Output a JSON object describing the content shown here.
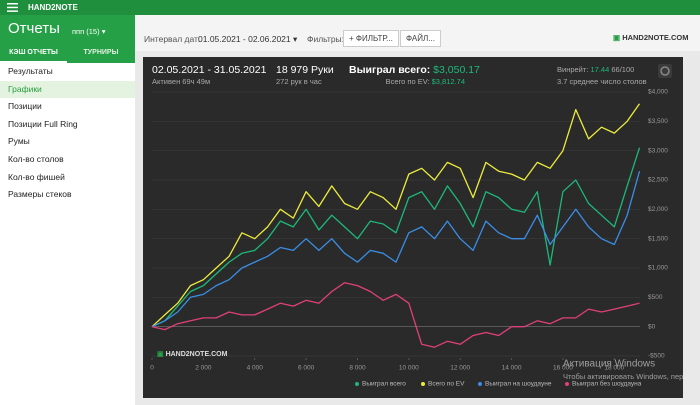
{
  "header": {
    "app": "HAND2NOTE",
    "title": "Отчеты",
    "profile": "ппп (15)"
  },
  "sidebar": {
    "tabs": [
      "КЭШ ОТЧЕТЫ",
      "ТУРНИРЫ"
    ],
    "items": [
      "Результаты",
      "Графики",
      "Позиции",
      "Позиции Full Ring",
      "Румы",
      "Кол-во столов",
      "Кол-во фишей",
      "Размеры стеков"
    ]
  },
  "toolbar": {
    "date_label": "Интервал дат:",
    "date_range": "01.05.2021 - 02.06.2021",
    "filters_label": "Фильтры:",
    "filter_button": "ФИЛЬТР...",
    "file_button": "ФАЙЛ...",
    "logo": "HAND2NOTE.COM"
  },
  "stats": {
    "period": "02.05.2021 - 31.05.2021",
    "active": "Активен 69ч 49м",
    "hands": "18 979 Руки",
    "hands_per_hour": "272 рук в час",
    "won_label": "Выиграл всего:",
    "won": "$3,050.17",
    "ev_label": "Всего по EV:",
    "ev": "$3,812.74",
    "winrate_label": "Винрейт:",
    "winrate": "17.44",
    "winrate_unit": "66/100",
    "avg_tables": "3.7 среднее число столов"
  },
  "watermark": {
    "title": "Активация Windows",
    "text": "Чтобы активировать Windows, пере"
  },
  "chart_data": {
    "type": "line",
    "x": [
      0,
      500,
      1000,
      1500,
      2000,
      2500,
      3000,
      3500,
      4000,
      4500,
      5000,
      5500,
      6000,
      6500,
      7000,
      7500,
      8000,
      8500,
      9000,
      9500,
      10000,
      10500,
      11000,
      11500,
      12000,
      12500,
      13000,
      13500,
      14000,
      14500,
      15000,
      15500,
      16000,
      16500,
      17000,
      17500,
      18000,
      18500,
      18979
    ],
    "series": [
      {
        "name": "Выиграл всего",
        "color": "#1db97a",
        "values": [
          0,
          100,
          350,
          600,
          700,
          900,
          1100,
          1250,
          1300,
          1500,
          1800,
          1700,
          2000,
          1650,
          1900,
          1700,
          1500,
          1800,
          1750,
          1600,
          2200,
          2300,
          2000,
          2400,
          2100,
          1700,
          2300,
          2200,
          2000,
          1950,
          2300,
          1050,
          2300,
          2500,
          2100,
          1900,
          1700,
          2400,
          3050
        ]
      },
      {
        "name": "Всего по EV",
        "color": "#ecec3c",
        "values": [
          0,
          200,
          400,
          700,
          800,
          1000,
          1200,
          1600,
          1500,
          1700,
          2000,
          1850,
          2300,
          2050,
          2400,
          2100,
          2000,
          2300,
          2200,
          2000,
          2600,
          2700,
          2500,
          2800,
          2700,
          2200,
          2800,
          2650,
          2600,
          2500,
          2800,
          2700,
          3000,
          3700,
          3200,
          3400,
          3300,
          3500,
          3800
        ]
      },
      {
        "name": "Выиграл на шоудауне",
        "color": "#3a8ee6",
        "values": [
          0,
          100,
          250,
          500,
          550,
          700,
          800,
          1000,
          1100,
          1200,
          1350,
          1300,
          1500,
          1300,
          1500,
          1250,
          1100,
          1300,
          1250,
          1100,
          1600,
          1700,
          1500,
          1800,
          1500,
          1300,
          1800,
          1600,
          1500,
          1500,
          1900,
          1400,
          1700,
          2000,
          1700,
          1500,
          1400,
          1900,
          2650
        ]
      },
      {
        "name": "Выиграл без шоудауна",
        "color": "#e0407a",
        "values": [
          0,
          -50,
          50,
          100,
          150,
          150,
          250,
          200,
          200,
          300,
          400,
          350,
          450,
          400,
          600,
          750,
          700,
          600,
          450,
          550,
          400,
          -300,
          -350,
          -250,
          -300,
          -150,
          -100,
          -150,
          0,
          0,
          100,
          50,
          150,
          150,
          300,
          250,
          300,
          350,
          400
        ]
      }
    ],
    "xlim": [
      0,
      19000
    ],
    "ylim": [
      -500,
      4000
    ],
    "xticks": [
      0,
      {
        "value": 2000,
        "label": "2 000"
      },
      {
        "value": 4000,
        "label": "4 000"
      },
      {
        "value": 6000,
        "label": "6 000"
      },
      {
        "value": 8000,
        "label": "8 000"
      },
      {
        "value": 10000,
        "label": "10 000"
      },
      {
        "value": 12000,
        "label": "12 000"
      },
      {
        "value": 14000,
        "label": "14 000"
      },
      {
        "value": 16000,
        "label": "16 000"
      },
      {
        "value": 18000,
        "label": "18 000"
      }
    ],
    "yticks": [
      {
        "value": -500,
        "label": "-$500"
      },
      {
        "value": 0,
        "label": "$0"
      },
      {
        "value": 500,
        "label": "$500"
      },
      {
        "value": 1000,
        "label": "$1,000"
      },
      {
        "value": 1500,
        "label": "$1,500"
      },
      {
        "value": 2000,
        "label": "$2,000"
      },
      {
        "value": 2500,
        "label": "$2,500"
      },
      {
        "value": 3000,
        "label": "$3,000"
      },
      {
        "value": 3500,
        "label": "$3,500"
      },
      {
        "value": 4000,
        "label": "$4,000"
      }
    ],
    "grid": true
  }
}
